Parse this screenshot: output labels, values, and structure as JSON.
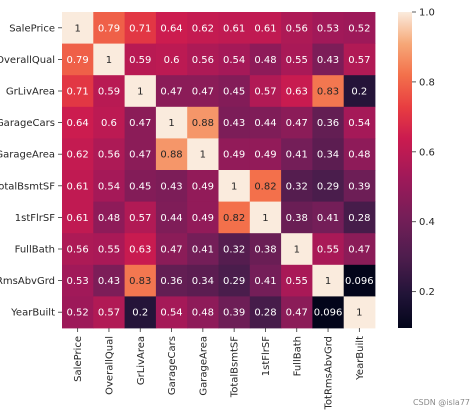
{
  "chart_data": {
    "type": "heatmap",
    "row_labels": [
      "SalePrice",
      "OverallQual",
      "GrLivArea",
      "GarageCars",
      "GarageArea",
      "TotalBsmtSF",
      "1stFlrSF",
      "FullBath",
      "TotRmsAbvGrd",
      "YearBuilt"
    ],
    "col_labels": [
      "SalePrice",
      "OverallQual",
      "GrLivArea",
      "GarageCars",
      "GarageArea",
      "TotalBsmtSF",
      "1stFlrSF",
      "FullBath",
      "TotRmsAbvGrd",
      "YearBuilt"
    ],
    "values": [
      [
        1,
        0.79,
        0.71,
        0.64,
        0.62,
        0.61,
        0.61,
        0.56,
        0.53,
        0.52
      ],
      [
        0.79,
        1,
        0.59,
        0.6,
        0.56,
        0.54,
        0.48,
        0.55,
        0.43,
        0.57
      ],
      [
        0.71,
        0.59,
        1,
        0.47,
        0.47,
        0.45,
        0.57,
        0.63,
        0.83,
        0.2
      ],
      [
        0.64,
        0.6,
        0.47,
        1,
        0.88,
        0.43,
        0.44,
        0.47,
        0.36,
        0.54
      ],
      [
        0.62,
        0.56,
        0.47,
        0.88,
        1,
        0.49,
        0.49,
        0.41,
        0.34,
        0.48
      ],
      [
        0.61,
        0.54,
        0.45,
        0.43,
        0.49,
        1,
        0.82,
        0.32,
        0.29,
        0.39
      ],
      [
        0.61,
        0.48,
        0.57,
        0.44,
        0.49,
        0.82,
        1,
        0.38,
        0.41,
        0.28
      ],
      [
        0.56,
        0.55,
        0.63,
        0.47,
        0.41,
        0.32,
        0.38,
        1,
        0.55,
        0.47
      ],
      [
        0.53,
        0.43,
        0.83,
        0.36,
        0.34,
        0.29,
        0.41,
        0.55,
        1,
        0.096
      ],
      [
        0.52,
        0.57,
        0.2,
        0.54,
        0.48,
        0.39,
        0.28,
        0.47,
        0.096,
        1
      ]
    ],
    "cell_labels": [
      [
        "1",
        "0.79",
        "0.71",
        "0.64",
        "0.62",
        "0.61",
        "0.61",
        "0.56",
        "0.53",
        "0.52"
      ],
      [
        "0.79",
        "1",
        "0.59",
        "0.6",
        "0.56",
        "0.54",
        "0.48",
        "0.55",
        "0.43",
        "0.57"
      ],
      [
        "0.71",
        "0.59",
        "1",
        "0.47",
        "0.47",
        "0.45",
        "0.57",
        "0.63",
        "0.83",
        "0.2"
      ],
      [
        "0.64",
        "0.6",
        "0.47",
        "1",
        "0.88",
        "0.43",
        "0.44",
        "0.47",
        "0.36",
        "0.54"
      ],
      [
        "0.62",
        "0.56",
        "0.47",
        "0.88",
        "1",
        "0.49",
        "0.49",
        "0.41",
        "0.34",
        "0.48"
      ],
      [
        "0.61",
        "0.54",
        "0.45",
        "0.43",
        "0.49",
        "1",
        "0.82",
        "0.32",
        "0.29",
        "0.39"
      ],
      [
        "0.61",
        "0.48",
        "0.57",
        "0.44",
        "0.49",
        "0.82",
        "1",
        "0.38",
        "0.41",
        "0.28"
      ],
      [
        "0.56",
        "0.55",
        "0.63",
        "0.47",
        "0.41",
        "0.32",
        "0.38",
        "1",
        "0.55",
        "0.47"
      ],
      [
        "0.53",
        "0.43",
        "0.83",
        "0.36",
        "0.34",
        "0.29",
        "0.41",
        "0.55",
        "1",
        "0.096"
      ],
      [
        "0.52",
        "0.57",
        "0.2",
        "0.54",
        "0.48",
        "0.39",
        "0.28",
        "0.47",
        "0.096",
        "1"
      ]
    ],
    "colormap": "rocket",
    "vmin": 0.096,
    "vmax": 1,
    "colorbar_ticks": [
      0.2,
      0.4,
      0.6,
      0.8,
      1.0
    ],
    "colorbar_tick_labels": [
      "0.2",
      "0.4",
      "0.6",
      "0.8",
      "1.0"
    ],
    "colorbar_position": "right",
    "title": "",
    "xlabel": "",
    "ylabel": ""
  },
  "watermark": "CSDN @isla77"
}
